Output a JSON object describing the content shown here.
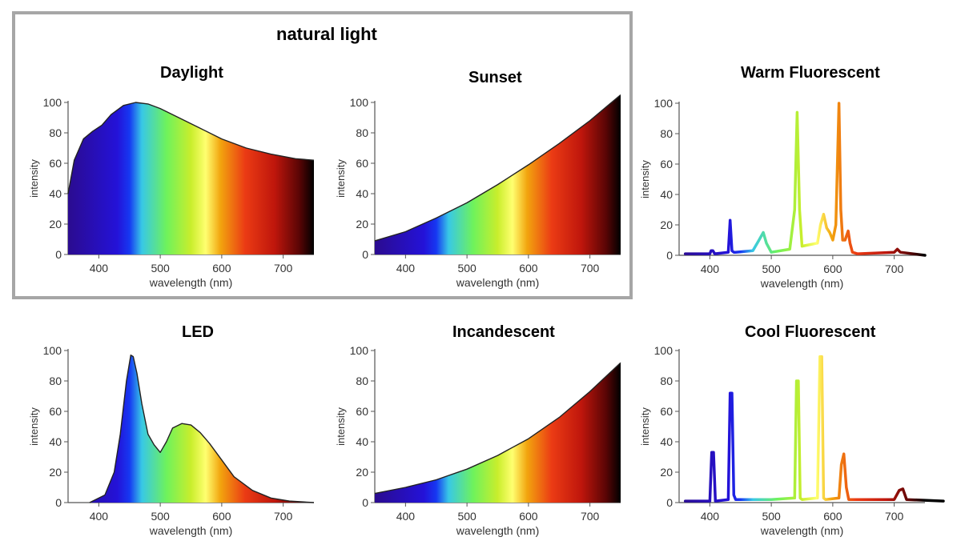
{
  "group": {
    "title": "natural light"
  },
  "chart_data": [
    {
      "id": "daylight",
      "type": "area",
      "title": "Daylight",
      "xlabel": "wavelength (nm)",
      "ylabel": "intensity",
      "xlim": [
        350,
        750
      ],
      "ylim": [
        0,
        100
      ],
      "xticks": [
        "400",
        "500",
        "600",
        "700"
      ],
      "yticks": [
        "0",
        "20",
        "40",
        "60",
        "80",
        "100"
      ],
      "x": [
        350,
        360,
        375,
        390,
        405,
        420,
        440,
        460,
        480,
        500,
        530,
        560,
        600,
        640,
        680,
        720,
        750
      ],
      "y": [
        40,
        62,
        76,
        81,
        85,
        92,
        98,
        100,
        99,
        96,
        90,
        84,
        76,
        70,
        66,
        63,
        62
      ]
    },
    {
      "id": "sunset",
      "type": "area",
      "title": "Sunset",
      "xlabel": "wavelength (nm)",
      "ylabel": "intensity",
      "xlim": [
        350,
        750
      ],
      "ylim": [
        0,
        100
      ],
      "xticks": [
        "400",
        "500",
        "600",
        "700"
      ],
      "yticks": [
        "0",
        "20",
        "40",
        "60",
        "80",
        "100"
      ],
      "x": [
        350,
        400,
        450,
        500,
        550,
        600,
        650,
        700,
        750
      ],
      "y": [
        9,
        15,
        24,
        34,
        46,
        59,
        73,
        88,
        105
      ]
    },
    {
      "id": "warm-fluorescent",
      "type": "line",
      "title": "Warm Fluorescent",
      "xlabel": "wavelength (nm)",
      "ylabel": "intensity",
      "xlim": [
        350,
        750
      ],
      "ylim": [
        0,
        100
      ],
      "xticks": [
        "400",
        "500",
        "600",
        "700"
      ],
      "yticks": [
        "0",
        "20",
        "40",
        "60",
        "80",
        "100"
      ],
      "x": [
        360,
        400,
        402,
        405,
        408,
        430,
        433,
        436,
        439,
        442,
        470,
        480,
        487,
        492,
        500,
        530,
        538,
        542,
        546,
        550,
        575,
        580,
        585,
        590,
        595,
        600,
        605,
        610,
        613,
        616,
        620,
        625,
        628,
        632,
        640,
        700,
        705,
        710,
        750
      ],
      "y": [
        1,
        1,
        3,
        3,
        1,
        2,
        23,
        3,
        2,
        2,
        3,
        10,
        15,
        8,
        2,
        4,
        30,
        94,
        30,
        6,
        8,
        20,
        27,
        18,
        15,
        10,
        20,
        100,
        30,
        10,
        10,
        16,
        8,
        2,
        1,
        2,
        4,
        2,
        0
      ]
    },
    {
      "id": "led",
      "type": "area",
      "title": "LED",
      "xlabel": "wavelength (nm)",
      "ylabel": "intensity",
      "xlim": [
        350,
        750
      ],
      "ylim": [
        0,
        100
      ],
      "xticks": [
        "400",
        "500",
        "600",
        "700"
      ],
      "yticks": [
        "0",
        "20",
        "40",
        "60",
        "80",
        "100"
      ],
      "x": [
        385,
        410,
        425,
        435,
        445,
        452,
        456,
        462,
        470,
        480,
        490,
        500,
        510,
        520,
        535,
        550,
        565,
        580,
        600,
        620,
        650,
        680,
        710,
        750
      ],
      "y": [
        0,
        5,
        20,
        45,
        80,
        97,
        96,
        85,
        65,
        45,
        38,
        33,
        40,
        49,
        52,
        51,
        46,
        39,
        28,
        17,
        8,
        3,
        1,
        0
      ]
    },
    {
      "id": "incandescent",
      "type": "area",
      "title": "Incandescent",
      "xlabel": "wavelength (nm)",
      "ylabel": "intensity",
      "xlim": [
        350,
        750
      ],
      "ylim": [
        0,
        100
      ],
      "xticks": [
        "400",
        "500",
        "600",
        "700"
      ],
      "yticks": [
        "0",
        "20",
        "40",
        "60",
        "80",
        "100"
      ],
      "x": [
        350,
        400,
        450,
        500,
        550,
        600,
        650,
        700,
        750
      ],
      "y": [
        6,
        10,
        15,
        22,
        31,
        42,
        56,
        73,
        92
      ]
    },
    {
      "id": "cool-fluorescent",
      "type": "line",
      "title": "Cool Fluorescent",
      "xlabel": "wavelength (nm)",
      "ylabel": "intensity",
      "xlim": [
        350,
        750
      ],
      "ylim": [
        0,
        100
      ],
      "xticks": [
        "400",
        "500",
        "600",
        "700"
      ],
      "yticks": [
        "0",
        "20",
        "40",
        "60",
        "80",
        "100"
      ],
      "x": [
        360,
        400,
        403,
        406,
        409,
        430,
        433,
        436,
        439,
        442,
        500,
        538,
        541,
        544,
        547,
        550,
        575,
        579,
        582,
        585,
        588,
        610,
        614,
        618,
        622,
        626,
        700,
        708,
        714,
        720,
        780
      ],
      "y": [
        1,
        1,
        33,
        33,
        1,
        2,
        72,
        72,
        5,
        2,
        2,
        3,
        80,
        80,
        3,
        2,
        3,
        96,
        96,
        3,
        2,
        3,
        25,
        32,
        10,
        2,
        2,
        8,
        9,
        2,
        1
      ]
    }
  ],
  "colors": {
    "spectrum": [
      "#2b0b8f",
      "#2412d8",
      "#1638f2",
      "#38c8e6",
      "#6ef25c",
      "#c9ee2c",
      "#ffff70",
      "#f2a40e",
      "#eb3b14",
      "#bf160c",
      "#5a0505",
      "#000000"
    ],
    "axis": "#555555",
    "curve": "#222222",
    "box_border": "#a6a6a6"
  }
}
